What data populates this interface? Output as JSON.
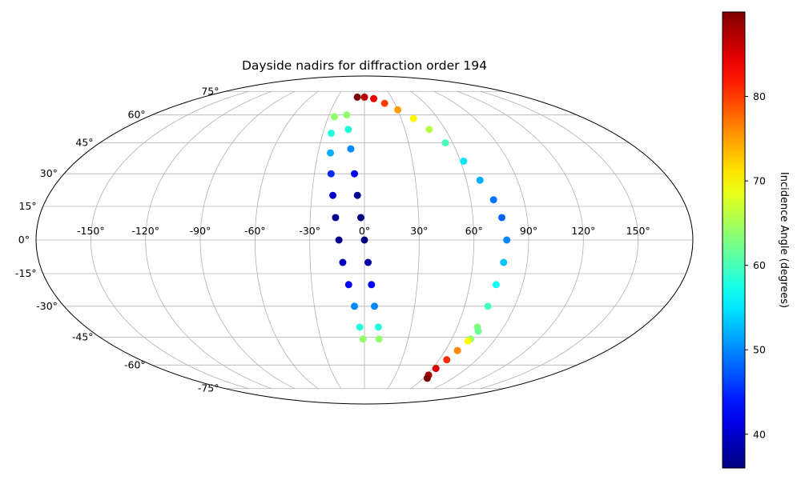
{
  "chart_data": {
    "type": "scatter",
    "projection": "mollweide",
    "title": "Dayside nadirs for diffraction order 194",
    "grid": true,
    "longitude_ticks": [
      -150,
      -120,
      -90,
      -60,
      -30,
      0,
      30,
      60,
      90,
      120,
      150
    ],
    "longitude_tick_labels": [
      "-150°",
      "-120°",
      "-90°",
      "-60°",
      "-30°",
      "0°",
      "30°",
      "60°",
      "90°",
      "120°",
      "150°"
    ],
    "latitude_ticks": [
      -75,
      -60,
      -45,
      -30,
      -15,
      0,
      15,
      30,
      45,
      60,
      75
    ],
    "latitude_tick_labels": [
      "-75°",
      "-60°",
      "-45°",
      "-30°",
      "-15°",
      "0°",
      "15°",
      "30°",
      "45°",
      "60°",
      "75°"
    ],
    "colorbar": {
      "label": "Incidence Angle (degrees)",
      "colormap": "jet",
      "range": [
        36,
        90
      ],
      "ticks": [
        40,
        50,
        60,
        70,
        80
      ],
      "tick_labels": [
        "40",
        "50",
        "60",
        "70",
        "80"
      ]
    },
    "series": [
      {
        "points": [
          {
            "lon": -25,
            "lat": 59,
            "inc": 64
          },
          {
            "lon": -24,
            "lat": 50,
            "inc": 58
          },
          {
            "lon": -22,
            "lat": 40,
            "inc": 52
          },
          {
            "lon": -20,
            "lat": 30,
            "inc": 45
          },
          {
            "lon": -18,
            "lat": 20,
            "inc": 40
          },
          {
            "lon": -16,
            "lat": 10,
            "inc": 37
          },
          {
            "lon": -14,
            "lat": 0,
            "inc": 37
          },
          {
            "lon": -12,
            "lat": -10,
            "inc": 39
          },
          {
            "lon": -9,
            "lat": -20,
            "inc": 43
          },
          {
            "lon": -6,
            "lat": -30,
            "inc": 50
          },
          {
            "lon": -3,
            "lat": -40,
            "inc": 58
          },
          {
            "lon": -1,
            "lat": -46,
            "inc": 64
          }
        ]
      },
      {
        "points": [
          {
            "lon": -15,
            "lat": 60,
            "inc": 64
          },
          {
            "lon": -12,
            "lat": 52,
            "inc": 58
          },
          {
            "lon": -9,
            "lat": 42,
            "inc": 50
          },
          {
            "lon": -6,
            "lat": 30,
            "inc": 42
          },
          {
            "lon": -4,
            "lat": 20,
            "inc": 37
          },
          {
            "lon": -2,
            "lat": 10,
            "inc": 36
          },
          {
            "lon": 0,
            "lat": 0,
            "inc": 36
          },
          {
            "lon": 2,
            "lat": -10,
            "inc": 38
          },
          {
            "lon": 4,
            "lat": -20,
            "inc": 43
          },
          {
            "lon": 6,
            "lat": -30,
            "inc": 50
          },
          {
            "lon": 9,
            "lat": -40,
            "inc": 58
          },
          {
            "lon": 10,
            "lat": -46,
            "inc": 64
          }
        ]
      },
      {
        "points": [
          {
            "lon": -8,
            "lat": 71,
            "inc": 90
          },
          {
            "lon": 0,
            "lat": 71,
            "inc": 87
          },
          {
            "lon": 10,
            "lat": 70,
            "inc": 84
          },
          {
            "lon": 20,
            "lat": 67,
            "inc": 80
          },
          {
            "lon": 30,
            "lat": 63,
            "inc": 75
          },
          {
            "lon": 40,
            "lat": 58,
            "inc": 70
          },
          {
            "lon": 48,
            "lat": 52,
            "inc": 66
          },
          {
            "lon": 55,
            "lat": 45,
            "inc": 60
          },
          {
            "lon": 62,
            "lat": 36,
            "inc": 55
          },
          {
            "lon": 68,
            "lat": 27,
            "inc": 52
          },
          {
            "lon": 73,
            "lat": 18,
            "inc": 49
          },
          {
            "lon": 76,
            "lat": 10,
            "inc": 48
          },
          {
            "lon": 78,
            "lat": 0,
            "inc": 50
          },
          {
            "lon": 77,
            "lat": -10,
            "inc": 53
          },
          {
            "lon": 75,
            "lat": -20,
            "inc": 57
          },
          {
            "lon": 74,
            "lat": -30,
            "inc": 60
          },
          {
            "lon": 73,
            "lat": -40,
            "inc": 63
          },
          {
            "lon": 73,
            "lat": -46,
            "inc": 64
          }
        ]
      },
      {
        "points": [
          {
            "lon": 75,
            "lat": -42,
            "inc": 62
          },
          {
            "lon": 72,
            "lat": -47,
            "inc": 70
          },
          {
            "lon": 69,
            "lat": -52,
            "inc": 76
          },
          {
            "lon": 66,
            "lat": -57,
            "inc": 81
          },
          {
            "lon": 63,
            "lat": -62,
            "inc": 85
          },
          {
            "lon": 62,
            "lat": -66,
            "inc": 88
          },
          {
            "lon": 64,
            "lat": -68,
            "inc": 90
          }
        ]
      }
    ]
  }
}
